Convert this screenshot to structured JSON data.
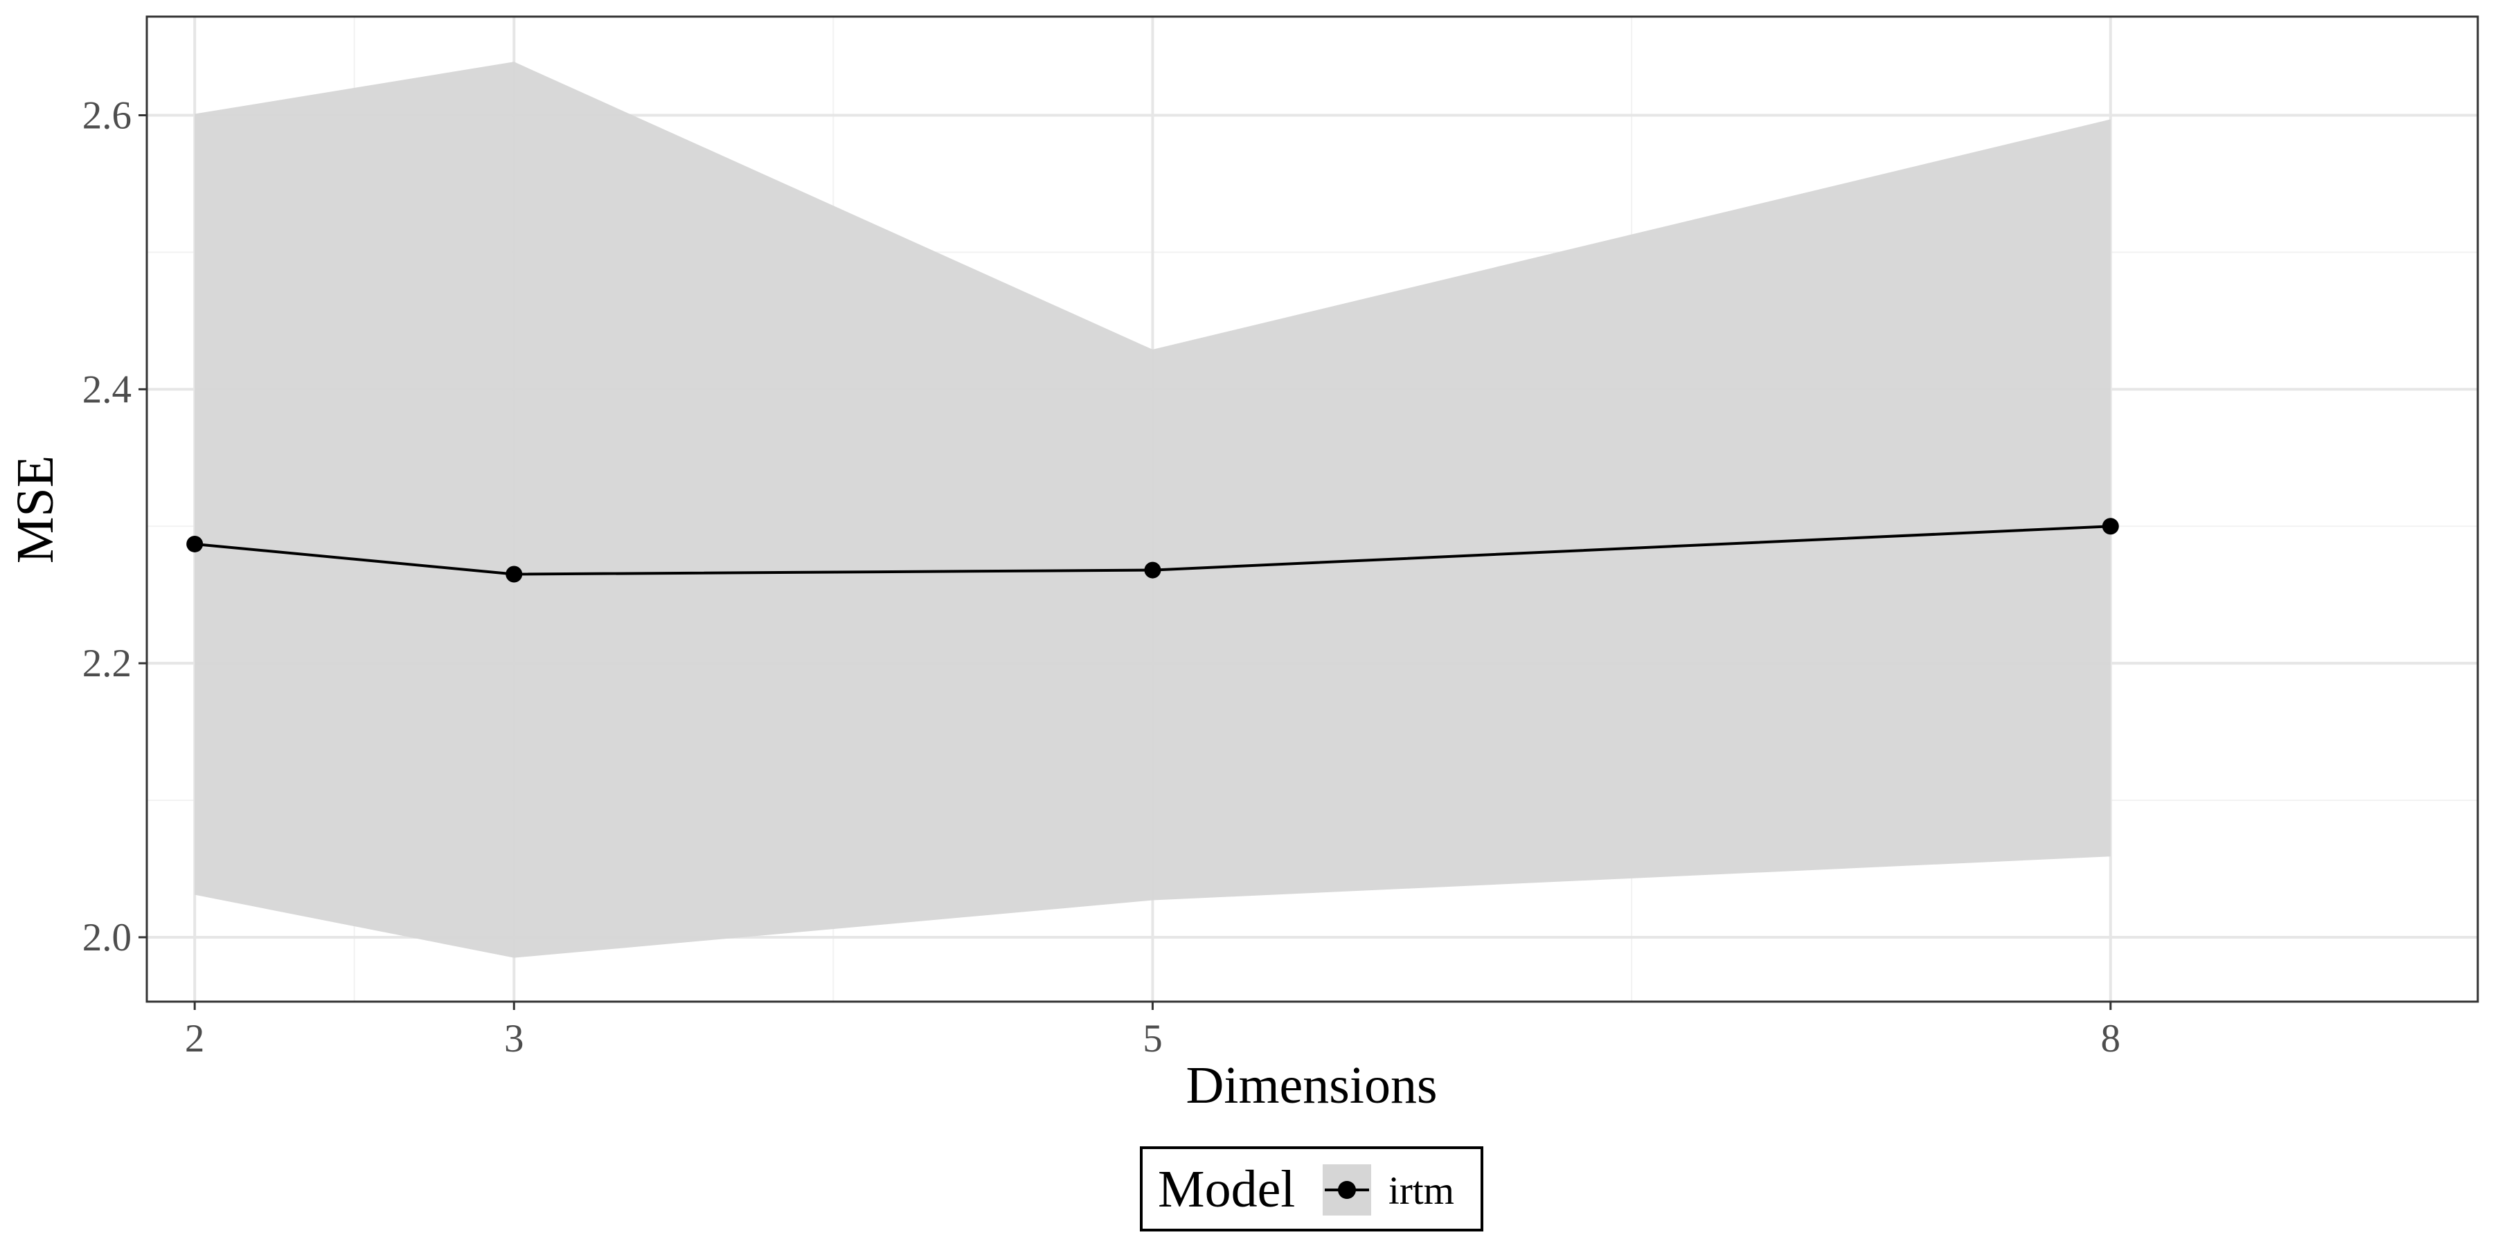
{
  "chart_data": {
    "type": "line",
    "xlabel": "Dimensions",
    "ylabel": "MSE",
    "x": [
      2,
      3,
      5,
      8
    ],
    "xticks": [
      "2",
      "3",
      "5",
      "8"
    ],
    "xlim": [
      1.85,
      9.15
    ],
    "ylim": [
      1.953,
      2.672
    ],
    "yticks": [
      "2.0",
      "2.2",
      "2.4",
      "2.6"
    ],
    "ytick_values": [
      2.0,
      2.2,
      2.4,
      2.6
    ],
    "grid": true,
    "legend_position": "bottom",
    "legend_title": "Model",
    "series": [
      {
        "name": "irtm",
        "values": [
          2.287,
          2.265,
          2.268,
          2.3
        ],
        "lower": [
          2.031,
          1.985,
          2.027,
          2.059
        ],
        "upper": [
          2.601,
          2.639,
          2.429,
          2.597
        ],
        "line_color": "#000000",
        "ribbon_color": "#d6d6d6"
      }
    ],
    "colors": {
      "panel_border": "#333333",
      "grid_major": "#e6e6e6",
      "grid_minor": "#f2f2f2",
      "tick_text": "#4d4d4d"
    }
  }
}
